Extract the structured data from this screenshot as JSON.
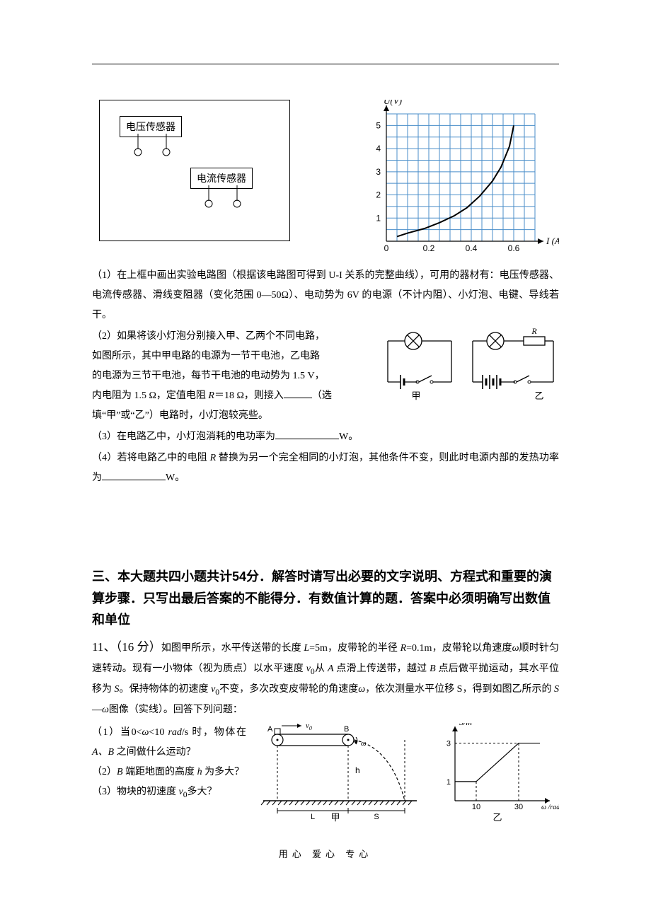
{
  "sensors": {
    "voltage_label": "电压传感器",
    "current_label": "电流传感器"
  },
  "chart": {
    "type": "line",
    "x_label": "I (A)",
    "y_label": "U(V)",
    "background_color": "#ffffff",
    "grid_color": "#4a8ec9",
    "grid_line_width": 1,
    "curve_color": "#000000",
    "curve_line_width": 2,
    "axis_color": "#000000",
    "x_ticks": [
      0,
      0.2,
      0.4,
      0.6
    ],
    "y_ticks": [
      0,
      1,
      2,
      3,
      4,
      5
    ],
    "x_tick_labels": [
      "0",
      "0.2",
      "0.4",
      "0.6"
    ],
    "y_tick_labels": [
      "1",
      "2",
      "3",
      "4",
      "5"
    ],
    "xlim": [
      0,
      0.7
    ],
    "ylim": [
      0,
      5.5
    ],
    "x_minor_step": 0.05,
    "y_minor_step": 0.5,
    "curve_points": [
      [
        0.05,
        0.2
      ],
      [
        0.1,
        0.35
      ],
      [
        0.18,
        0.55
      ],
      [
        0.25,
        0.8
      ],
      [
        0.32,
        1.1
      ],
      [
        0.38,
        1.45
      ],
      [
        0.44,
        1.95
      ],
      [
        0.5,
        2.6
      ],
      [
        0.54,
        3.2
      ],
      [
        0.58,
        4.1
      ],
      [
        0.6,
        5.0
      ]
    ],
    "tick_fontsize": 12,
    "label_fontsize": 13
  },
  "q1": {
    "p1": "（1）在上框中画出实验电路图（根据该电路图可得到 U-I 关系的完整曲线），可用的器材有：电压传感器、电流传感器、滑线变阻器（变化范围 0—50Ω）、电动势为 6V 的电源（不计内阻）、小灯泡、电键、导线若干。"
  },
  "qgroup_right_circuit": {
    "bulb_color": "#000000",
    "battery_color": "#000000",
    "line_width": 1.3,
    "label_left": "甲",
    "label_right": "乙",
    "resistor_label": "R"
  },
  "q2": {
    "line1": "（2）如果将该小灯泡分别接入甲、乙两个不同电路，",
    "line2": "如图所示，其中甲电路的电源为一节干电池，乙电路",
    "line3": "的电源为三节干电池，每节干电池的电动势为 1.5  V，",
    "line4_part1": "内电阻为 1.5 Ω，定值电阻 ",
    "line4_R": "R",
    "line4_part2": "＝18 Ω，则接入",
    "line4_hint": "（选",
    "line5": "填“甲”或“乙”）电路时，小灯泡较亮些。"
  },
  "q3": {
    "text_a": "（3）在电路乙中，小灯泡消耗的电功率为",
    "unit": "W。"
  },
  "q4": {
    "text_a": "（4）若将电路乙中的电阻 ",
    "R": "R",
    "text_b": " 替换为另一个完全相同的小灯泡，其他条件不变，则此时电源内部的发热功率为",
    "unit": "W。"
  },
  "section3_heading": "三、本大题共四小题共计54分．解答时请写出必要的文字说明、方程式和重要的演算步骤．只写出最后答案的不能得分．有数值计算的题．答案中必须明确写出数值和单位",
  "q11": {
    "lead_a": "11、（16 分）",
    "lead_b": "如图甲所示，水平传送带的长度 ",
    "L_sym": "L",
    "lead_c": "=5m，皮带轮的半径 ",
    "R_sym": "R",
    "lead_d": "=0.1m，皮带轮以角速度",
    "omega_sym": "ω",
    "lead_e": "顺时针匀速转动。现有一小物体（视为质点）以水平速度 ",
    "v0_sym": "v",
    "lead_f": "从 ",
    "A_sym": "A",
    "lead_g": " 点滑上传送带，越过 ",
    "B_sym": "B",
    "lead_h": " 点后做平抛运动，其水平位移为 ",
    "S_sym": "S",
    "lead_i": "。保持物体的初速度 ",
    "lead_j": "不变，多次改变皮带轮的角速度",
    "lead_k": "，依次测量水平位移 S，得到如图乙所示的 ",
    "S_sym2": "S",
    "dash": "—",
    "lead_l": "图像（实线）。回答下列问题：",
    "sub1_a": "（1）当",
    "sub1_ineq_left": "0",
    "sub1_lt1": "<",
    "sub1_omega": "ω",
    "sub1_lt2": "<",
    "sub1_ineq_right": "10",
    "sub1_unit": "rad",
    "sub1_b": "/s 时，物体在 ",
    "sub1_AB": "A、B",
    "sub1_c": " 之间做什么运动？",
    "sub2_a": "（2）",
    "sub2_B": "B",
    "sub2_b": " 端距地面的高度 ",
    "sub2_h": "h",
    "sub2_c": " 为多大？",
    "sub3_a": "（3）物块的初速度 ",
    "sub3_c": "多大？"
  },
  "conveyor_figure": {
    "label_A": "A",
    "label_B": "B",
    "label_v0": "v",
    "label_omega": "ω",
    "label_h": "h",
    "label_L": "L",
    "label_S": "S",
    "caption": "甲",
    "line_color": "#000000",
    "dash_color": "#000000",
    "hatch_color": "#000000"
  },
  "s_omega_chart": {
    "type": "line",
    "x_label": "ω /rad/s",
    "y_label": "S/m",
    "axis_color": "#000000",
    "line_color": "#000000",
    "line_width": 1.2,
    "x_ticks": [
      10,
      30
    ],
    "y_ticks": [
      1,
      3
    ],
    "x_tick_labels": [
      "10",
      "30"
    ],
    "y_tick_labels": [
      "1",
      "3"
    ],
    "xlim": [
      0,
      40
    ],
    "ylim": [
      0,
      3.5
    ],
    "segments": [
      {
        "from": [
          0,
          1
        ],
        "to": [
          10,
          1
        ]
      },
      {
        "from": [
          10,
          1
        ],
        "to": [
          30,
          3
        ]
      },
      {
        "from": [
          30,
          3
        ],
        "to": [
          40,
          3
        ]
      }
    ],
    "guide_dash": [
      {
        "from": [
          10,
          0
        ],
        "to": [
          10,
          1
        ]
      },
      {
        "from": [
          30,
          0
        ],
        "to": [
          30,
          3
        ]
      },
      {
        "from": [
          0,
          3
        ],
        "to": [
          30,
          3
        ]
      }
    ],
    "caption": "乙",
    "tick_fontsize": 11,
    "label_fontsize": 12
  },
  "footer": "用心   爱心   专心"
}
